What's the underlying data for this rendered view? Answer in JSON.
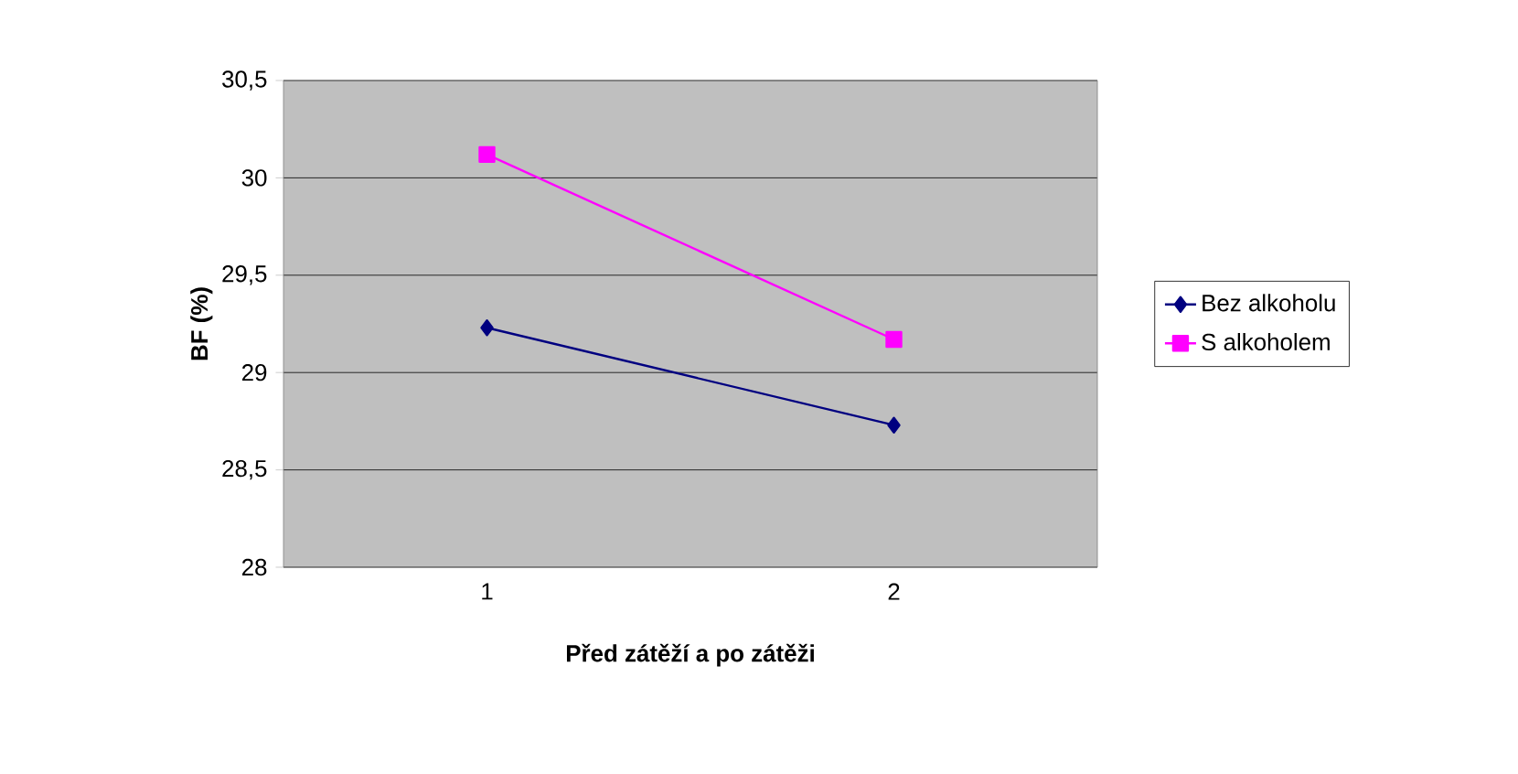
{
  "chart_data": {
    "type": "line",
    "xlabel": "Před zátěží a po zátěži",
    "ylabel": "BF (%)",
    "categories": [
      "1",
      "2"
    ],
    "series": [
      {
        "name": "Bez alkoholu",
        "color": "#000080",
        "marker": "diamond",
        "values": [
          29.23,
          28.73
        ]
      },
      {
        "name": "S alkoholem",
        "color": "#ff00ff",
        "marker": "square",
        "values": [
          30.12,
          29.17
        ]
      }
    ],
    "ylim": [
      28,
      30.5
    ],
    "yticks": [
      {
        "value": 28,
        "label": "28"
      },
      {
        "value": 28.5,
        "label": "28,5"
      },
      {
        "value": 29,
        "label": "29"
      },
      {
        "value": 29.5,
        "label": "29,5"
      },
      {
        "value": 30,
        "label": "30"
      },
      {
        "value": 30.5,
        "label": "30,5"
      }
    ],
    "grid": "y",
    "legend": "right",
    "line_style": "solid"
  }
}
